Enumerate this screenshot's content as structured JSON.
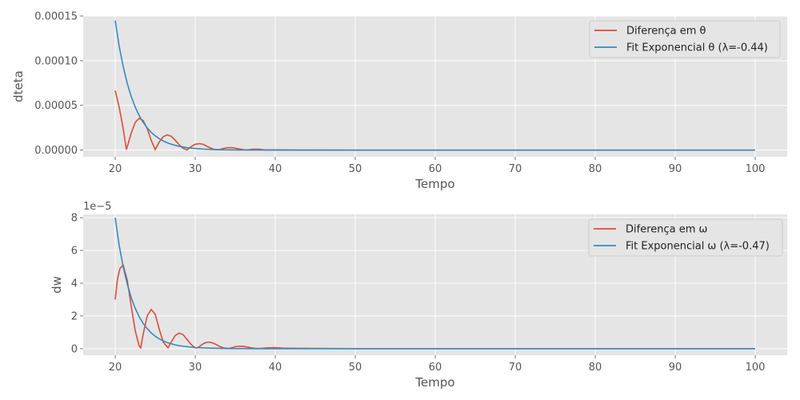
{
  "chart_data": [
    {
      "type": "line",
      "xlabel": "Tempo",
      "ylabel": "dteta",
      "xlim": [
        16,
        104
      ],
      "ylim": [
        -7.5e-06,
        0.00015
      ],
      "xticks": [
        20,
        30,
        40,
        50,
        60,
        70,
        80,
        90,
        100
      ],
      "xtick_labels": [
        "20",
        "30",
        "40",
        "50",
        "60",
        "70",
        "80",
        "90",
        "100"
      ],
      "yticks": [
        0,
        5e-05,
        0.0001,
        0.00015
      ],
      "ytick_labels": [
        "0.00000",
        "0.00005",
        "0.00010",
        "0.00015"
      ],
      "offset_text": "",
      "grid": true,
      "legend_position": "top-right",
      "series": [
        {
          "name": "Diferença em θ",
          "color": "#e24a33",
          "x": [
            20,
            20.5,
            21,
            21.4,
            22,
            22.5,
            23,
            23.5,
            24,
            24.5,
            25,
            25.5,
            26,
            26.5,
            27,
            27.5,
            28,
            28.5,
            29,
            29.5,
            30,
            30.5,
            31,
            31.5,
            32,
            32.5,
            33,
            33.5,
            34,
            34.5,
            35,
            35.5,
            36,
            36.5,
            37,
            37.5,
            38,
            38.5,
            39,
            40,
            42,
            45,
            50,
            60,
            70,
            80,
            90,
            100
          ],
          "y": [
            6.65e-05,
            4.8e-05,
            2.4e-05,
            5e-07,
            1.9e-05,
            3.1e-05,
            3.55e-05,
            3.3e-05,
            2.4e-05,
            1.1e-05,
            5e-07,
            9e-06,
            1.5e-05,
            1.7e-05,
            1.55e-05,
            1.1e-05,
            6e-06,
            2e-06,
            3e-07,
            4e-06,
            6.5e-06,
            7.2e-06,
            6.5e-06,
            4e-06,
            2e-06,
            5e-07,
            4e-07,
            1.8e-06,
            2.6e-06,
            2.7e-06,
            2.2e-06,
            1.3e-06,
            5e-07,
            2e-07,
            8e-07,
            1.1e-06,
            9e-07,
            4e-07,
            2e-07,
            3e-07,
            1e-07,
            5e-08,
            0,
            0,
            0,
            0,
            0,
            0
          ]
        },
        {
          "name": "Fit Exponencial θ (λ=-0.44)",
          "color": "#348abd",
          "x": [
            20,
            20.5,
            21,
            21.5,
            22,
            22.5,
            23,
            23.5,
            24,
            24.5,
            25,
            25.5,
            26,
            26.5,
            27,
            27.5,
            28,
            29,
            30,
            31,
            32,
            33,
            34,
            35,
            36,
            38,
            40,
            45,
            50,
            60,
            70,
            80,
            90,
            100
          ],
          "y": [
            0.000145,
            0.000116,
            9.34e-05,
            7.49e-05,
            6e-05,
            4.82e-05,
            3.86e-05,
            3.1e-05,
            2.48e-05,
            1.99e-05,
            1.6e-05,
            1.28e-05,
            1.03e-05,
            8.2e-06,
            6.6e-06,
            5.3e-06,
            4.2e-06,
            2.7e-06,
            1.8e-06,
            1.1e-06,
            7e-07,
            5e-07,
            3e-07,
            2e-07,
            1e-07,
            5e-08,
            2e-08,
            0,
            0,
            0,
            0,
            0,
            0,
            0
          ]
        }
      ]
    },
    {
      "type": "line",
      "xlabel": "Tempo",
      "ylabel": "dw",
      "xlim": [
        16,
        104
      ],
      "ylim": [
        -0.4,
        8.2
      ],
      "xticks": [
        20,
        30,
        40,
        50,
        60,
        70,
        80,
        90,
        100
      ],
      "xtick_labels": [
        "20",
        "30",
        "40",
        "50",
        "60",
        "70",
        "80",
        "90",
        "100"
      ],
      "yticks": [
        0,
        2,
        4,
        6,
        8
      ],
      "ytick_labels": [
        "0",
        "2",
        "4",
        "6",
        "8"
      ],
      "offset_text": "1e−5",
      "grid": true,
      "legend_position": "top-right",
      "series": [
        {
          "name": "Diferença em ω",
          "color": "#e24a33",
          "x": [
            20,
            20.3,
            20.6,
            21,
            21.5,
            22,
            22.5,
            23,
            23.2,
            23.5,
            24,
            24.5,
            25,
            25.5,
            26,
            26.6,
            27,
            27.5,
            28,
            28.5,
            29,
            29.5,
            30,
            30.3,
            31,
            31.5,
            32,
            32.5,
            33,
            33.5,
            34,
            34.3,
            35,
            35.5,
            36,
            36.5,
            37,
            37.5,
            38,
            39,
            40,
            41,
            43,
            45,
            50,
            60,
            70,
            80,
            90,
            100
          ],
          "y": [
            3.0,
            4.3,
            4.9,
            5.1,
            4.2,
            2.6,
            1.1,
            0.15,
            0.05,
            0.9,
            2.0,
            2.4,
            2.1,
            1.2,
            0.4,
            0.05,
            0.4,
            0.8,
            0.95,
            0.85,
            0.55,
            0.25,
            0.05,
            0.05,
            0.3,
            0.4,
            0.38,
            0.28,
            0.15,
            0.05,
            0.02,
            0.02,
            0.12,
            0.15,
            0.14,
            0.1,
            0.05,
            0.02,
            0.01,
            0.05,
            0.06,
            0.03,
            0.02,
            0.01,
            0,
            0,
            0,
            0,
            0,
            0
          ]
        },
        {
          "name": "Fit Exponencial ω (λ=-0.47)",
          "color": "#348abd",
          "x": [
            20,
            20.5,
            21,
            21.5,
            22,
            22.5,
            23,
            23.5,
            24,
            24.5,
            25,
            25.5,
            26,
            26.5,
            27,
            27.5,
            28,
            29,
            30,
            31,
            32,
            33,
            34,
            35,
            36,
            38,
            40,
            45,
            50,
            60,
            70,
            80,
            90,
            100
          ],
          "y": [
            8.0,
            6.3,
            5.0,
            3.96,
            3.12,
            2.47,
            1.95,
            1.54,
            1.22,
            0.96,
            0.76,
            0.6,
            0.47,
            0.37,
            0.3,
            0.23,
            0.18,
            0.12,
            0.07,
            0.05,
            0.03,
            0.02,
            0.01,
            0.007,
            0.004,
            0.002,
            0.001,
            0,
            0,
            0,
            0,
            0,
            0,
            0
          ]
        }
      ]
    }
  ]
}
